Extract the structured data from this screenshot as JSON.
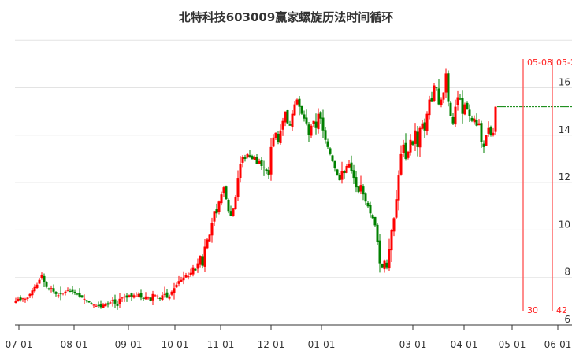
{
  "chart_data": {
    "type": "candlestick",
    "title": "北特科技603009赢家螺旋历法时间循环",
    "xlabel": "",
    "ylabel": "",
    "ylim": [
      6,
      18
    ],
    "y_ticks": [
      "6",
      "8",
      "10",
      "12",
      "14",
      "16"
    ],
    "x_ticks": [
      "07-01",
      "08-01",
      "09-01",
      "10-01",
      "11-01",
      "12-01",
      "01-01",
      "03-01",
      "04-01",
      "05-01",
      "06-01"
    ],
    "grid": "horizontal",
    "up_color": "#ff0000",
    "down_color": "#008000",
    "close": [
      7.03,
      7.1,
      7.05,
      7.12,
      7.1,
      7.15,
      7.3,
      7.45,
      7.6,
      7.7,
      7.9,
      8.1,
      7.8,
      7.6,
      7.5,
      7.55,
      7.4,
      7.3,
      7.25,
      7.3,
      7.35,
      7.4,
      7.45,
      7.4,
      7.4,
      7.35,
      7.3,
      7.2,
      7.15,
      7.1,
      7.0,
      6.95,
      6.9,
      6.85,
      6.8,
      6.8,
      6.75,
      6.85,
      6.9,
      6.85,
      6.95,
      7.05,
      6.9,
      6.8,
      7.1,
      7.15,
      7.2,
      7.15,
      7.25,
      7.2,
      7.25,
      7.2,
      7.3,
      7.15,
      7.1,
      7.2,
      7.15,
      7.0,
      7.3,
      7.25,
      7.2,
      7.1,
      7.25,
      7.3,
      7.15,
      7.2,
      7.4,
      7.55,
      7.7,
      7.85,
      7.9,
      8.0,
      8.1,
      8.05,
      8.2,
      8.4,
      8.3,
      8.6,
      8.9,
      8.5,
      9.3,
      9.6,
      9.8,
      10.3,
      10.8,
      10.7,
      11.2,
      11.5,
      11.8,
      11.3,
      10.8,
      10.6,
      10.9,
      11.4,
      12.2,
      12.8,
      13.1,
      13.0,
      13.2,
      13.1,
      13.0,
      13.1,
      12.8,
      12.9,
      12.7,
      12.6,
      12.5,
      12.3,
      13.5,
      13.9,
      14.1,
      13.7,
      14.2,
      14.6,
      15.0,
      14.5,
      14.4,
      14.9,
      15.3,
      15.5,
      15.2,
      14.9,
      14.7,
      14.5,
      14.0,
      14.4,
      14.6,
      14.3,
      14.9,
      14.7,
      14.2,
      13.8,
      13.5,
      13.2,
      12.9,
      12.6,
      12.3,
      12.1,
      12.5,
      12.4,
      12.7,
      12.8,
      12.5,
      12.2,
      11.8,
      11.6,
      11.9,
      11.5,
      11.2,
      11.0,
      10.7,
      10.5,
      10.2,
      9.5,
      8.6,
      8.4,
      8.7,
      8.4,
      9.2,
      10.0,
      10.5,
      11.3,
      12.3,
      13.2,
      13.6,
      13.0,
      13.3,
      13.8,
      13.6,
      14.2,
      13.5,
      14.3,
      14.5,
      14.2,
      14.9,
      15.5,
      15.4,
      16.1,
      16.0,
      15.3,
      15.5,
      15.8,
      16.6,
      15.4,
      14.8,
      14.5,
      15.2,
      15.6,
      15.5,
      14.9,
      15.3,
      15.1,
      14.8,
      14.6,
      14.7,
      14.4,
      14.5,
      13.7,
      13.5,
      14.0,
      14.3,
      14.0,
      14.1,
      15.2
    ],
    "reference_line": {
      "color": "#008000",
      "style": "dashed"
    },
    "time_markers": [
      {
        "date_label": "05-08",
        "count_label": "30",
        "color": "#ff6666"
      },
      {
        "date_label": "05-2",
        "count_label": "42",
        "color": "#ff6666"
      }
    ]
  }
}
